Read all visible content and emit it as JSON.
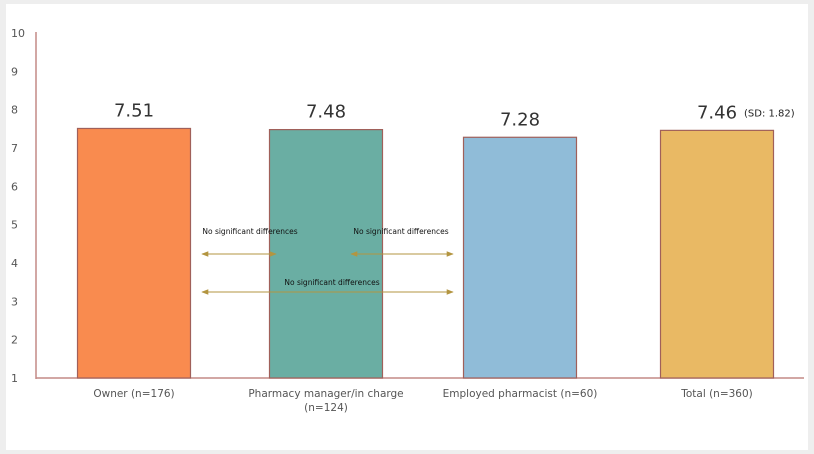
{
  "chart_data": {
    "type": "bar",
    "categories": [
      [
        "Owner (n=176)"
      ],
      [
        "Pharmacy manager/in charge",
        "(n=124)"
      ],
      [
        "Employed pharmacist (n=60)"
      ],
      [
        "Total (n=360)"
      ]
    ],
    "values": [
      7.51,
      7.48,
      7.28,
      7.46
    ],
    "value_labels": [
      "7.51",
      "7.48",
      "7.28",
      "7.46"
    ],
    "total_note": "(SD: 1.82)",
    "colors": [
      "#f98b4f",
      "#6aaea3",
      "#90bcd8",
      "#e9b964"
    ],
    "bar_stroke": "#a0605a",
    "axis_color": "#c48a86",
    "y_ticks": [
      "1",
      "2",
      "3",
      "4",
      "5",
      "6",
      "7",
      "8",
      "9",
      "10"
    ],
    "ylim": [
      1,
      10
    ],
    "grid": false,
    "annotations": [
      {
        "label": "No significant differences",
        "from": 1,
        "to": 2,
        "y": 4.3
      },
      {
        "label": "No significant differences",
        "from": 2,
        "to": 3,
        "y": 4.3
      },
      {
        "label": "No significant differences",
        "from": 1,
        "to": 3,
        "y": 3.3
      }
    ],
    "annotation_color": "#b39540",
    "title": "",
    "xlabel": "",
    "ylabel": ""
  }
}
